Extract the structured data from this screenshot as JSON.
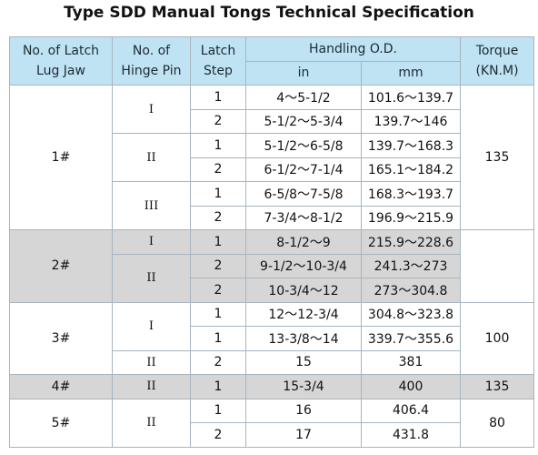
{
  "title": "Type SDD Manual Tongs Technical Specification",
  "headers": {
    "col1_line1": "No. of Latch",
    "col1_line2": "Lug Jaw",
    "col2_line1": "No. of",
    "col2_line2": "Hinge Pin",
    "col3_line1": "Latch",
    "col3_line2": "Step",
    "od": "Handling O.D.",
    "od_in": "in",
    "od_mm": "mm",
    "col5_line1": "Torque",
    "col5_line2": "(KN.M)"
  },
  "rows": [
    {
      "jaw": "1#",
      "pin": "I",
      "step": "1",
      "in": "4～5-1/2",
      "mm": "101.6～139.7",
      "torque": "135"
    },
    {
      "step": "2",
      "in": "5-1/2～5-3/4",
      "mm": "139.7～146"
    },
    {
      "pin": "II",
      "step": "1",
      "in": "5-1/2～6-5/8",
      "mm": "139.7～168.3"
    },
    {
      "step": "2",
      "in": "6-1/2～7-1/4",
      "mm": "165.1～184.2"
    },
    {
      "pin": "III",
      "step": "1",
      "in": "6-5/8～7-5/8",
      "mm": "168.3～193.7"
    },
    {
      "step": "2",
      "in": "7-3/4～8-1/2",
      "mm": "196.9～215.9"
    },
    {
      "jaw": "2#",
      "pin": "I",
      "step": "1",
      "in": "8-1/2～9",
      "mm": "215.9～228.6"
    },
    {
      "pin": "II",
      "step": "2",
      "in": "9-1/2～10-3/4",
      "mm": "241.3～273"
    },
    {
      "step": "2",
      "in": "10-3/4～12",
      "mm": "273～304.8"
    },
    {
      "jaw": "3#",
      "pin": "I",
      "step": "1",
      "in": "12～12-3/4",
      "mm": "304.8～323.8",
      "torque": "100"
    },
    {
      "step": "1",
      "in": "13-3/8～14",
      "mm": "339.7～355.6"
    },
    {
      "pin": "II",
      "step": "2",
      "in": "15",
      "mm": "381"
    },
    {
      "jaw": "4#",
      "pin": "II",
      "step": "1",
      "in": "15-3/4",
      "mm": "400",
      "torque": "135"
    },
    {
      "jaw": "5#",
      "pin": "II",
      "step": "1",
      "in": "16",
      "mm": "406.4",
      "torque": "80"
    },
    {
      "step": "2",
      "in": "17",
      "mm": "431.8"
    }
  ]
}
